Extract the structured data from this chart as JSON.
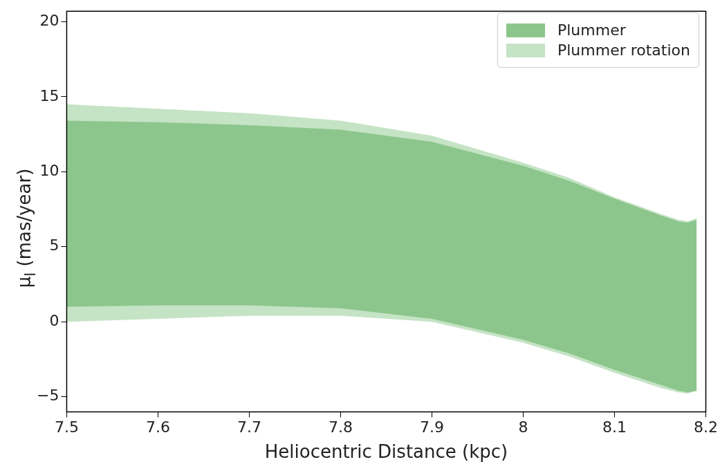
{
  "chart_data": {
    "type": "line",
    "xlabel": "Heliocentric Distance (kpc)",
    "ylabel": "μ$_{l}$ (mas/year)",
    "xlim": [
      7.5,
      8.2
    ],
    "xticks": [
      7.5,
      7.6,
      7.7,
      7.8,
      7.9,
      8.0,
      8.1,
      8.2
    ],
    "ylim": [
      -6,
      20.7
    ],
    "yticks": [
      -5,
      0,
      5,
      10,
      15,
      20
    ],
    "grid": false,
    "legend": "top right",
    "series": [
      {
        "name": "Plummer",
        "color": "#8cc68c",
        "x": [
          7.5,
          7.6,
          7.7,
          7.8,
          7.9,
          8.0,
          8.05,
          8.1,
          8.15,
          8.17,
          8.18,
          8.19
        ],
        "values": [
          null,
          null,
          null,
          null,
          null,
          null,
          null,
          null,
          null,
          null,
          null,
          null
        ],
        "upper": [
          13.4,
          13.3,
          13.1,
          12.8,
          12.0,
          10.4,
          9.4,
          8.2,
          7.1,
          6.7,
          6.6,
          6.8
        ],
        "lower": [
          1.0,
          1.1,
          1.1,
          0.9,
          0.2,
          -1.2,
          -2.1,
          -3.2,
          -4.2,
          -4.6,
          -4.7,
          -4.6
        ]
      },
      {
        "name": "Plummer rotation",
        "color": "#c5e3c5",
        "x": [
          7.5,
          7.6,
          7.7,
          7.8,
          7.9,
          8.0,
          8.05,
          8.1,
          8.15,
          8.17,
          8.18,
          8.19
        ],
        "values": [
          null,
          null,
          null,
          null,
          null,
          null,
          null,
          null,
          null,
          null,
          null,
          null
        ],
        "upper": [
          14.5,
          14.2,
          13.9,
          13.4,
          12.4,
          10.6,
          9.6,
          8.3,
          7.2,
          6.8,
          6.7,
          6.9
        ],
        "lower": [
          0.0,
          0.2,
          0.4,
          0.4,
          0.0,
          -1.4,
          -2.3,
          -3.4,
          -4.4,
          -4.7,
          -4.8,
          -4.6
        ]
      }
    ]
  }
}
